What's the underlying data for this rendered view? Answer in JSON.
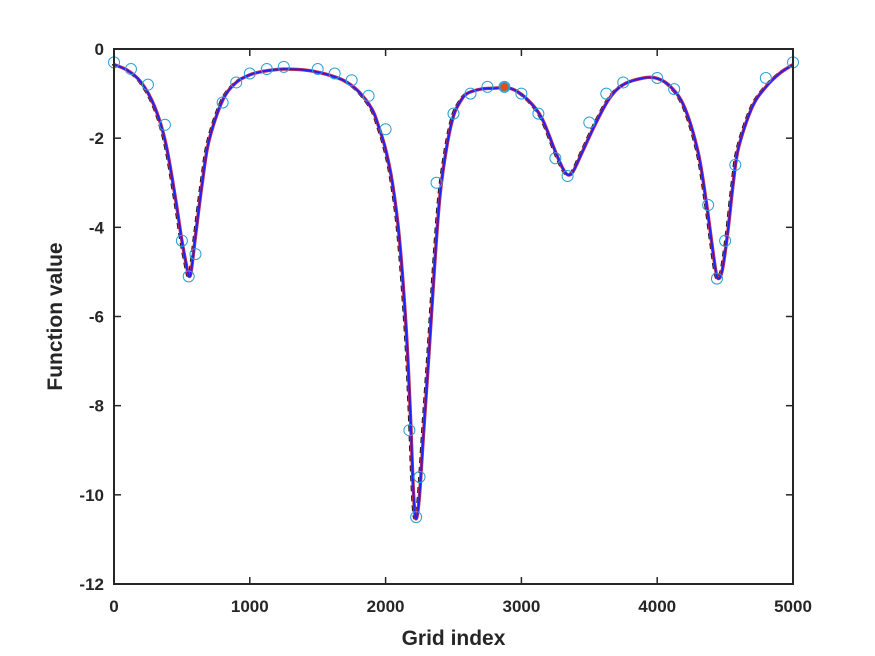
{
  "chart_data": {
    "type": "line",
    "xlabel": "Grid index",
    "ylabel": "Function value",
    "xlim": [
      0,
      5000
    ],
    "ylim": [
      -12,
      0
    ],
    "xticks": [
      0,
      1000,
      2000,
      3000,
      4000,
      5000
    ],
    "yticks": [
      0,
      -2,
      -4,
      -6,
      -8,
      -10,
      -12
    ],
    "grid": false,
    "legend": "none",
    "colors": {
      "axes": "#262626",
      "curve_main": "#2020ff",
      "curve_overlay": "#c0304a",
      "curve_dashed": "#1a1a1a",
      "markers": "#2a9fd8",
      "highlight": "#d95319"
    },
    "series": [
      {
        "style": "solid-curve",
        "x": [
          0,
          100,
          200,
          300,
          380,
          450,
          500,
          540,
          555,
          570,
          600,
          650,
          700,
          800,
          900,
          1000,
          1100,
          1250,
          1400,
          1500,
          1600,
          1700,
          1800,
          1900,
          1950,
          2000,
          2050,
          2100,
          2150,
          2180,
          2200,
          2215,
          2230,
          2250,
          2280,
          2320,
          2360,
          2400,
          2450,
          2500,
          2550,
          2600,
          2700,
          2800,
          2880,
          2950,
          3050,
          3150,
          3250,
          3300,
          3340,
          3380,
          3450,
          3550,
          3650,
          3750,
          3900,
          4000,
          4100,
          4200,
          4300,
          4360,
          4400,
          4430,
          4450,
          4480,
          4520,
          4560,
          4600,
          4700,
          4800,
          4900,
          5000
        ],
        "y": [
          -0.35,
          -0.48,
          -0.75,
          -1.3,
          -2.1,
          -3.3,
          -4.3,
          -4.95,
          -5.1,
          -4.95,
          -4.2,
          -3.0,
          -2.05,
          -1.15,
          -0.75,
          -0.58,
          -0.5,
          -0.45,
          -0.47,
          -0.52,
          -0.6,
          -0.72,
          -0.95,
          -1.35,
          -1.75,
          -2.25,
          -3.0,
          -4.2,
          -6.2,
          -8.0,
          -9.6,
          -10.4,
          -10.5,
          -10.0,
          -8.6,
          -6.8,
          -4.9,
          -3.3,
          -2.2,
          -1.5,
          -1.18,
          -1.0,
          -0.9,
          -0.88,
          -0.87,
          -0.92,
          -1.15,
          -1.55,
          -2.3,
          -2.65,
          -2.82,
          -2.75,
          -2.3,
          -1.65,
          -1.1,
          -0.8,
          -0.65,
          -0.66,
          -0.85,
          -1.3,
          -2.3,
          -3.4,
          -4.3,
          -4.95,
          -5.15,
          -4.95,
          -4.1,
          -3.0,
          -2.2,
          -1.3,
          -0.85,
          -0.55,
          -0.35
        ]
      },
      {
        "style": "sample-markers",
        "x": [
          0,
          125,
          250,
          375,
          500,
          550,
          600,
          800,
          900,
          1000,
          1125,
          1250,
          1500,
          1625,
          1750,
          1875,
          2000,
          2175,
          2225,
          2250,
          2375,
          2500,
          2625,
          2750,
          2875,
          3000,
          3125,
          3250,
          3340,
          3500,
          3625,
          3750,
          4000,
          4125,
          4375,
          4440,
          4500,
          4575,
          4800,
          5000
        ],
        "y": [
          -0.3,
          -0.45,
          -0.8,
          -1.7,
          -4.3,
          -5.1,
          -4.6,
          -1.2,
          -0.75,
          -0.55,
          -0.45,
          -0.4,
          -0.45,
          -0.55,
          -0.7,
          -1.05,
          -1.8,
          -8.55,
          -10.5,
          -9.6,
          -3.0,
          -1.45,
          -1.0,
          -0.85,
          -0.85,
          -1.0,
          -1.45,
          -2.45,
          -2.85,
          -1.65,
          -1.0,
          -0.75,
          -0.65,
          -0.9,
          -3.5,
          -5.15,
          -4.3,
          -2.6,
          -0.65,
          -0.3
        ]
      },
      {
        "style": "highlight-point",
        "x": [
          2875
        ],
        "y": [
          -0.85
        ]
      }
    ]
  }
}
